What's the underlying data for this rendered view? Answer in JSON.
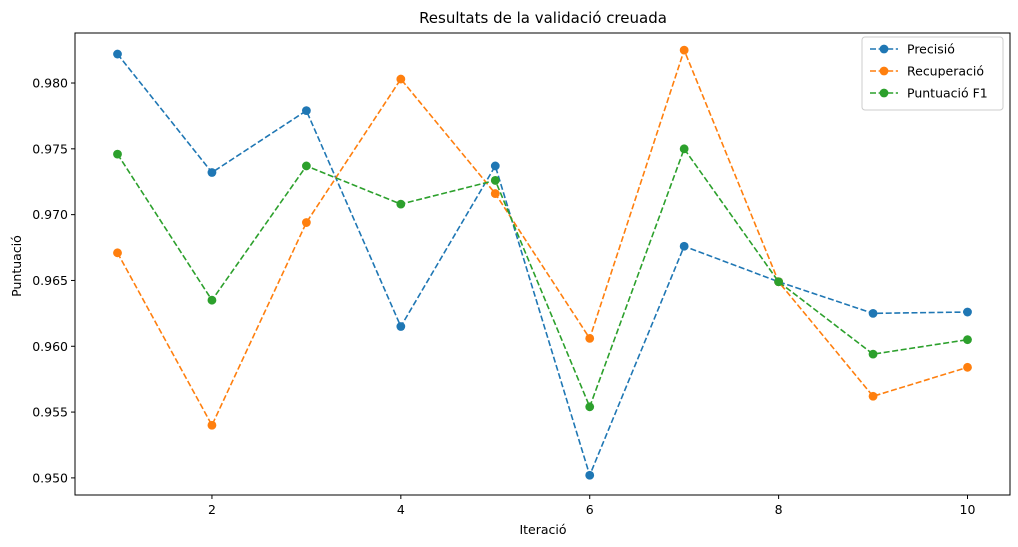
{
  "chart_data": {
    "type": "line",
    "title": "Resultats de la validació creuada",
    "xlabel": "Iteració",
    "ylabel": "Puntuació",
    "x": [
      1,
      2,
      3,
      4,
      5,
      6,
      7,
      8,
      9,
      10
    ],
    "xlim": [
      0.55,
      10.45
    ],
    "ylim": [
      0.9487,
      0.9838
    ],
    "xticks": [
      2,
      4,
      6,
      8,
      10
    ],
    "yticks": [
      0.95,
      0.955,
      0.96,
      0.965,
      0.97,
      0.975,
      0.98
    ],
    "ytick_labels": [
      "0.950",
      "0.955",
      "0.960",
      "0.965",
      "0.970",
      "0.975",
      "0.980"
    ],
    "grid": false,
    "legend_position": "top-right",
    "line_style": "dashed",
    "marker": "circle",
    "series": [
      {
        "name": "Precisió",
        "color": "#1f77b4",
        "values": [
          0.9822,
          0.9732,
          0.9779,
          0.9615,
          0.9737,
          0.9502,
          0.9676,
          0.9649,
          0.9625,
          0.9626
        ]
      },
      {
        "name": "Recuperació",
        "color": "#ff7f0e",
        "values": [
          0.9671,
          0.954,
          0.9694,
          0.9803,
          0.9716,
          0.9606,
          0.9825,
          0.9649,
          0.9562,
          0.9584
        ]
      },
      {
        "name": "Puntuació F1",
        "color": "#2ca02c",
        "values": [
          0.9746,
          0.9635,
          0.9737,
          0.9708,
          0.9726,
          0.9554,
          0.975,
          0.9649,
          0.9594,
          0.9605
        ]
      }
    ]
  }
}
